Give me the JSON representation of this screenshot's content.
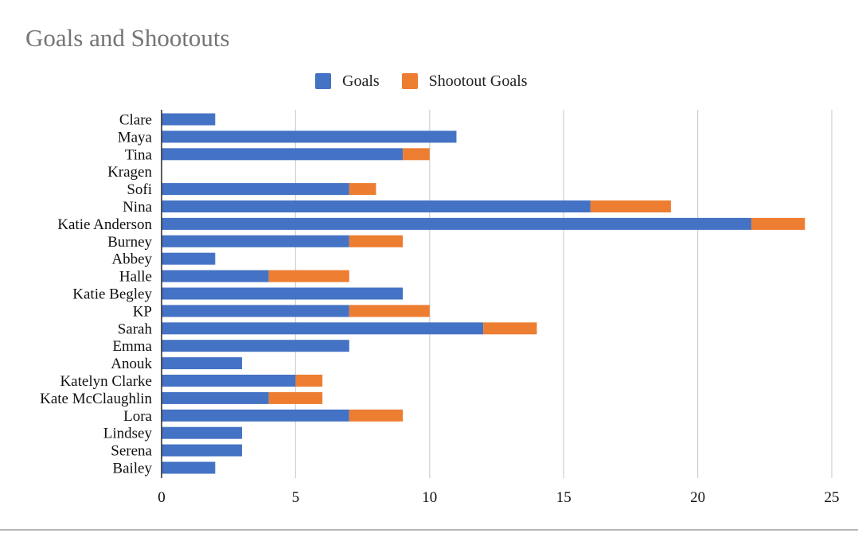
{
  "chart_data": {
    "type": "bar",
    "orientation": "horizontal",
    "stacked": true,
    "title": "Goals and Shootouts",
    "xlabel": "",
    "ylabel": "",
    "xlim": [
      0,
      25
    ],
    "x_ticks": [
      0,
      5,
      10,
      15,
      20,
      25
    ],
    "grid": true,
    "legend_position": "top",
    "categories": [
      "Clare",
      "Maya",
      "Tina",
      "Kragen",
      "Sofi",
      "Nina",
      "Katie Anderson",
      "Burney",
      "Abbey",
      "Halle",
      "Katie Begley",
      "KP",
      "Sarah",
      "Emma",
      "Anouk",
      "Katelyn Clarke",
      "Kate McClaughlin",
      "Lora",
      "Lindsey",
      "Serena",
      "Bailey"
    ],
    "series": [
      {
        "name": "Goals",
        "color": "#4472c4",
        "values": [
          2,
          11,
          9,
          0,
          7,
          16,
          22,
          7,
          2,
          4,
          9,
          7,
          12,
          7,
          3,
          5,
          4,
          7,
          3,
          3,
          2
        ]
      },
      {
        "name": "Shootout Goals",
        "color": "#ed7d31",
        "values": [
          0,
          0,
          1,
          0,
          1,
          3,
          2,
          2,
          0,
          3,
          0,
          3,
          2,
          0,
          0,
          1,
          2,
          2,
          0,
          0,
          0
        ]
      }
    ]
  }
}
